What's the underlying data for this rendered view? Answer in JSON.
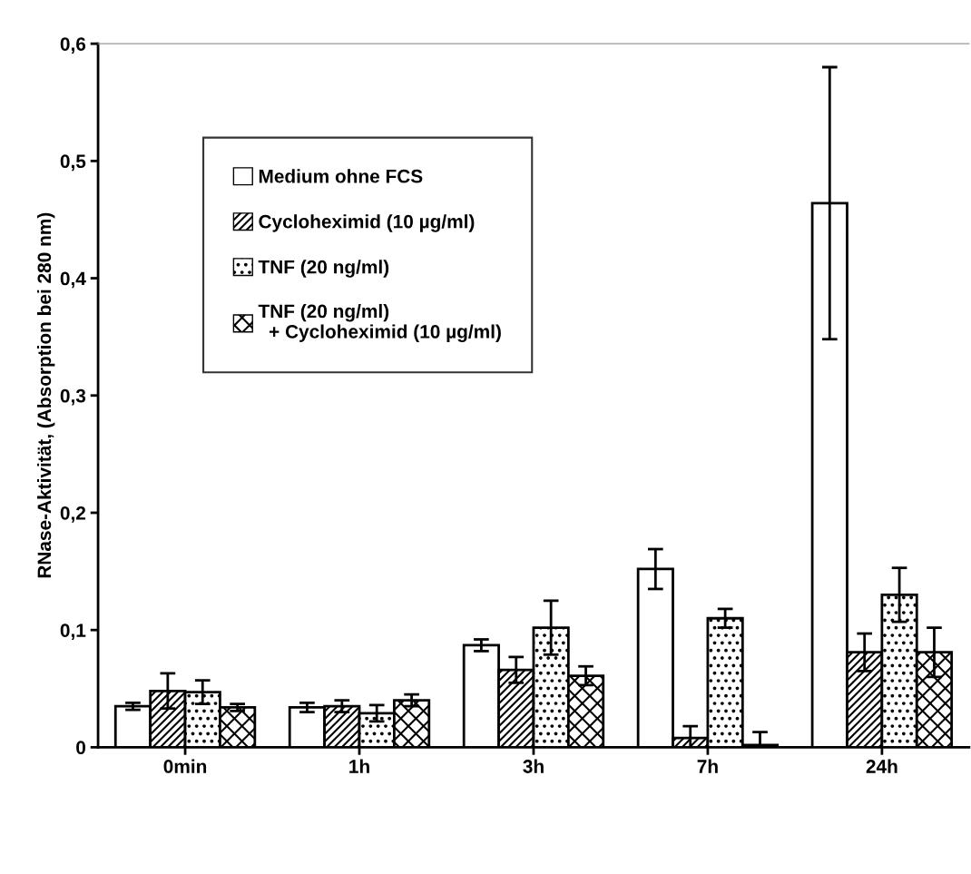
{
  "chart_data": {
    "type": "bar",
    "ylabel": "RNase-Aktivität, (Absorption bei 280 nm)",
    "categories": [
      "0min",
      "1h",
      "3h",
      "7h",
      "24h"
    ],
    "series": [
      {
        "name": "Medium ohne FCS",
        "color": "#ffffff",
        "values": [
          0.035,
          0.034,
          0.087,
          0.152,
          0.464
        ],
        "errors": [
          0.003,
          0.004,
          0.005,
          0.017,
          0.116
        ]
      },
      {
        "name": "Cycloheximid (10 µg/ml)",
        "color": "#000000",
        "values": [
          0.048,
          0.035,
          0.066,
          0.008,
          0.081
        ],
        "errors": [
          0.015,
          0.005,
          0.011,
          0.01,
          0.016
        ]
      },
      {
        "name": "TNF (20 ng/ml)",
        "color": "#000000",
        "values": [
          0.047,
          0.029,
          0.102,
          0.11,
          0.13
        ],
        "errors": [
          0.01,
          0.007,
          0.023,
          0.008,
          0.023
        ]
      },
      {
        "name": "TNF (20 ng/ml)\n  + Cycloheximid (10 µg/ml)",
        "color": "#000000",
        "values": [
          0.034,
          0.04,
          0.061,
          0.002,
          0.081
        ],
        "errors": [
          0.003,
          0.005,
          0.008,
          0.011,
          0.021
        ]
      }
    ],
    "ylim": [
      0,
      0.6
    ],
    "yticks": [
      {
        "value": 0,
        "label": "0"
      },
      {
        "value": 0.1,
        "label": "0,1"
      },
      {
        "value": 0.2,
        "label": "0,2"
      },
      {
        "value": 0.3,
        "label": "0,3"
      },
      {
        "value": 0.4,
        "label": "0,4"
      },
      {
        "value": 0.5,
        "label": "0,5"
      },
      {
        "value": 0.6,
        "label": "0,6"
      }
    ],
    "grid": false,
    "legend": "top left"
  }
}
